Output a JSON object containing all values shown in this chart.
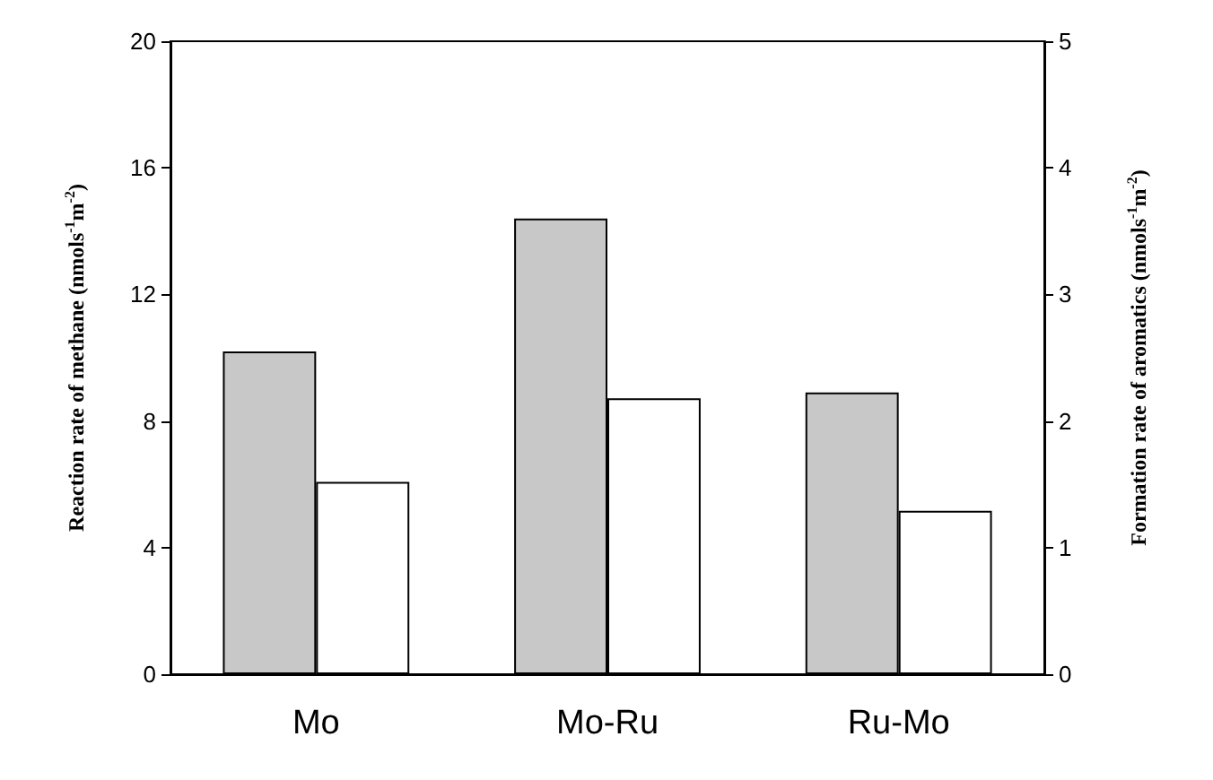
{
  "chart_data": {
    "type": "bar",
    "categories": [
      "Mo",
      "Mo-Ru",
      "Ru-Mo"
    ],
    "ylabel": "Reaction rate of methane (nmols$^{-1}$m$^{-2}$)",
    "y2label": "Formation rate of aromatics (nmols$^{-1}$m$^{-2}$)",
    "series": [
      {
        "color": "#c8c8c8",
        "values": [
          10.2,
          14.4,
          8.9
        ]
      },
      {
        "color": "#ffffff",
        "axis": "y2",
        "values": [
          1.52,
          2.18,
          1.29
        ]
      }
    ],
    "ylim": [
      0,
      20
    ],
    "yticks": [
      0,
      4,
      8,
      12,
      16,
      20
    ],
    "y2lim": [
      0,
      5
    ],
    "y2ticks": [
      0,
      1,
      2,
      3,
      4,
      5
    ]
  }
}
